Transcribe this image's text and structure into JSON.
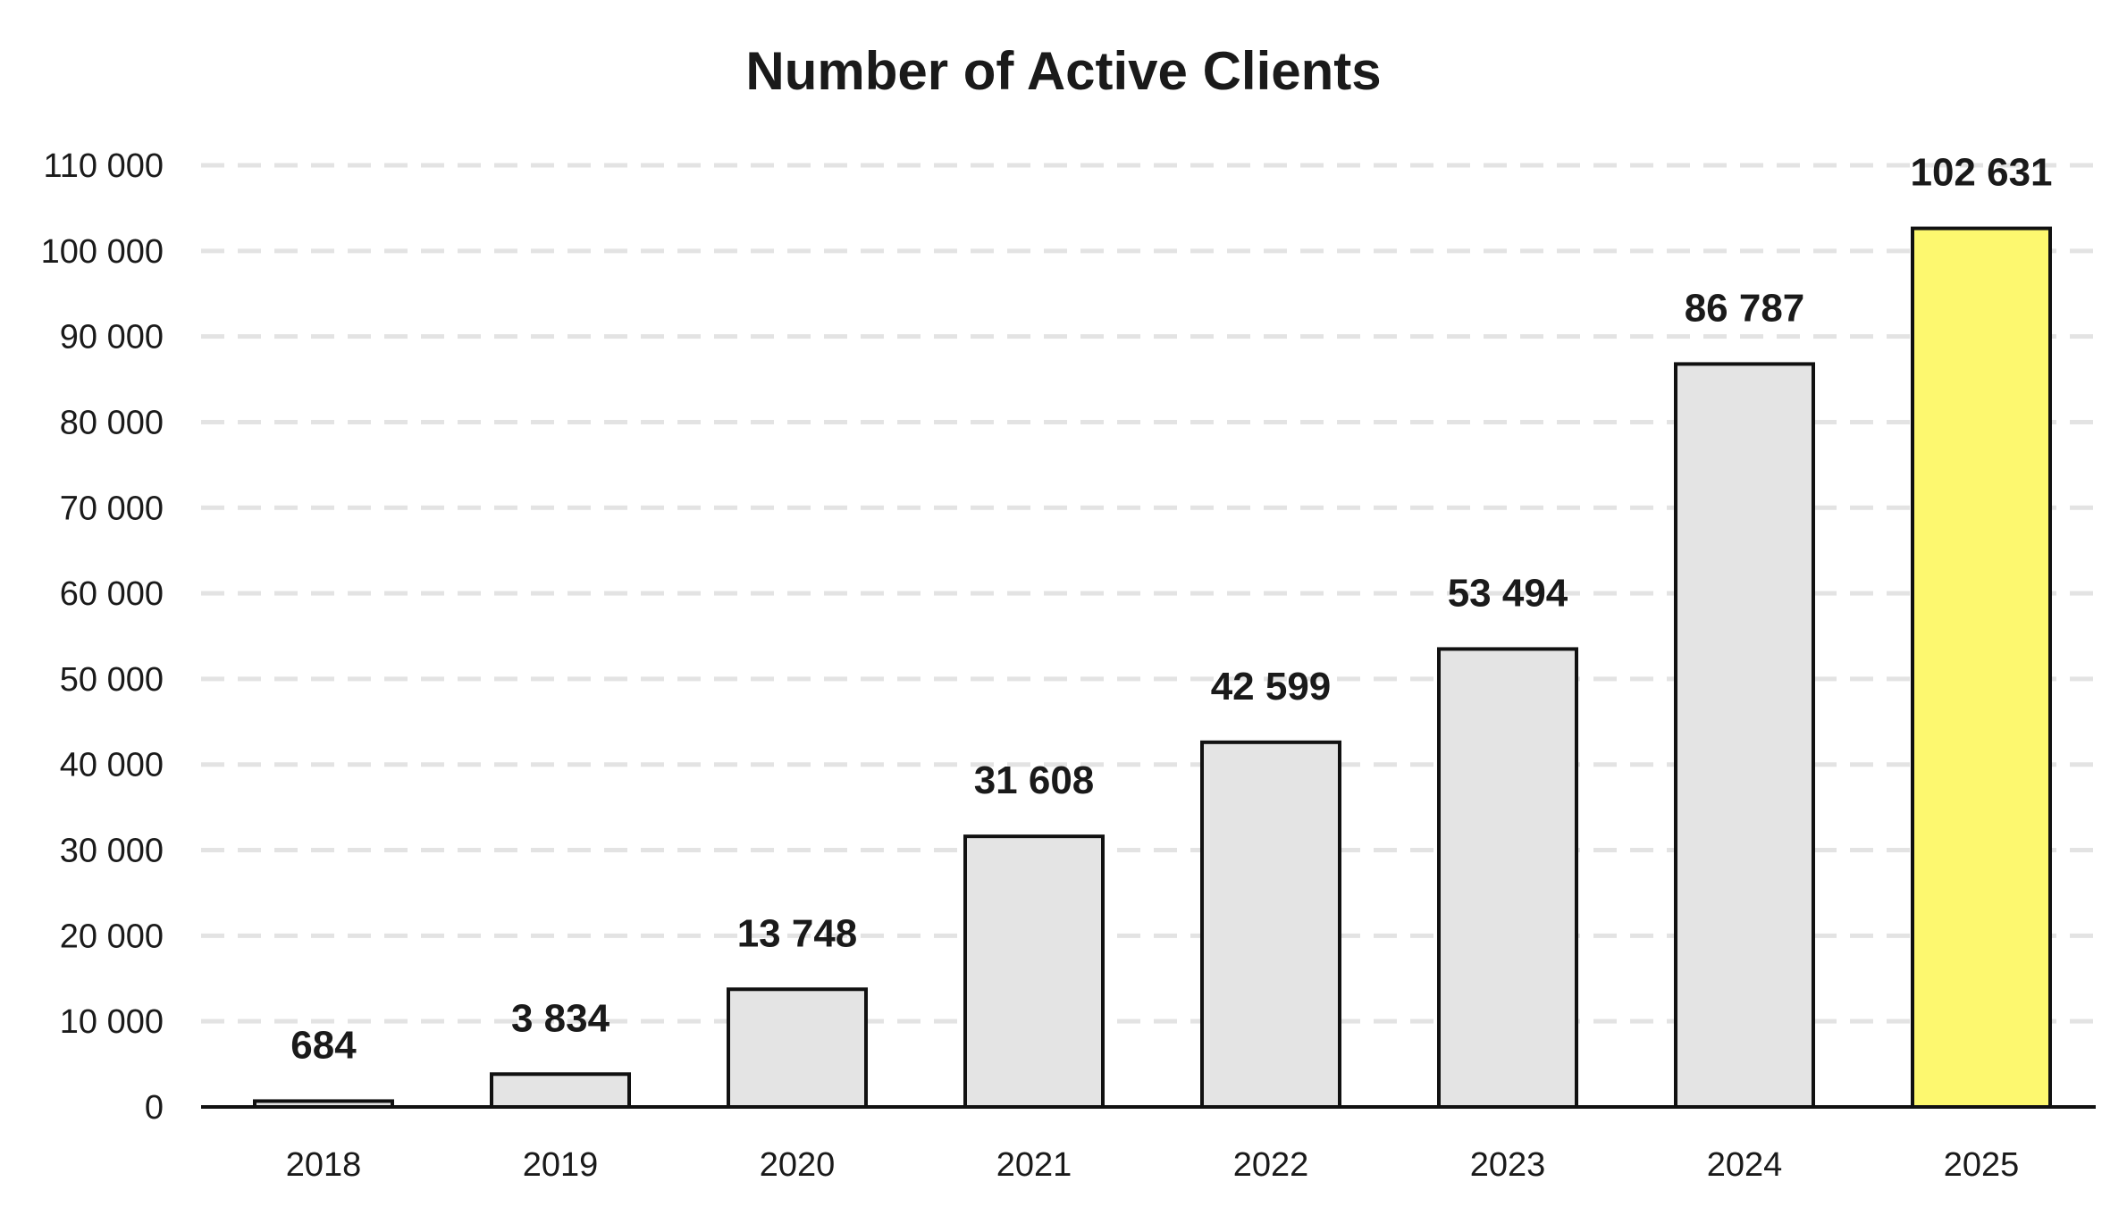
{
  "chart_data": {
    "type": "bar",
    "title": "Number of Active Clients",
    "xlabel": "",
    "ylabel": "",
    "categories": [
      "2018",
      "2019",
      "2020",
      "2021",
      "2022",
      "2023",
      "2024",
      "2025"
    ],
    "values": [
      684,
      3834,
      13748,
      31608,
      42599,
      53494,
      86787,
      102631
    ],
    "data_labels": [
      "684",
      "3 834",
      "13 748",
      "31 608",
      "42 599",
      "53 494",
      "86 787",
      "102 631"
    ],
    "ylim": [
      0,
      110000
    ],
    "yticks": [
      0,
      10000,
      20000,
      30000,
      40000,
      50000,
      60000,
      70000,
      80000,
      90000,
      100000,
      110000
    ],
    "ytick_labels": [
      "0",
      "10 000",
      "20 000",
      "30 000",
      "40 000",
      "50 000",
      "60 000",
      "70 000",
      "80 000",
      "90 000",
      "100 000",
      "110 000"
    ],
    "grid": true,
    "legend": "none",
    "colors": {
      "bar_default": "#e4e4e4",
      "bar_highlight": "#fdf86f",
      "bar_outline": "#111111",
      "gridline": "#e3e3e3",
      "text": "#1a1a1a"
    },
    "highlight_index": 7
  }
}
